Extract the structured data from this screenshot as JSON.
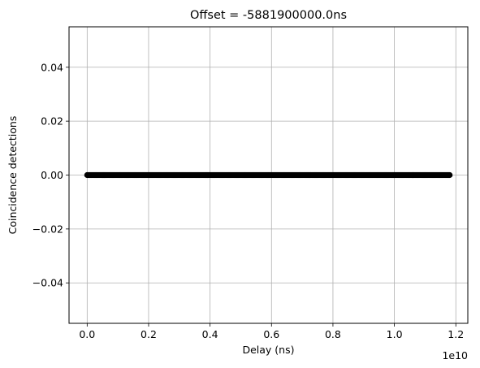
{
  "chart_data": {
    "type": "scatter",
    "title": "Offset = -5881900000.0ns",
    "xlabel": "Delay (ns)",
    "ylabel": "Coincidence detections",
    "x_offset_label": "1e10",
    "x_scale": 10000000000,
    "xlim": [
      -0.059,
      1.239
    ],
    "ylim": [
      -0.055,
      0.055
    ],
    "xticks": [
      0.0,
      0.2,
      0.4,
      0.6,
      0.8,
      1.0,
      1.2
    ],
    "xtick_labels": [
      "0.0",
      "0.2",
      "0.4",
      "0.6",
      "0.8",
      "1.0",
      "1.2"
    ],
    "yticks": [
      -0.04,
      -0.02,
      0.0,
      0.02,
      0.04
    ],
    "ytick_labels": [
      "−0.04",
      "−0.02",
      "0.00",
      "0.02",
      "0.04"
    ],
    "grid": true,
    "series": [
      {
        "color": "#000000",
        "x_range": [
          0.0,
          1.18
        ],
        "y": 0.0,
        "note_points": "dense markers spanning the full x range at y = 0"
      }
    ]
  }
}
